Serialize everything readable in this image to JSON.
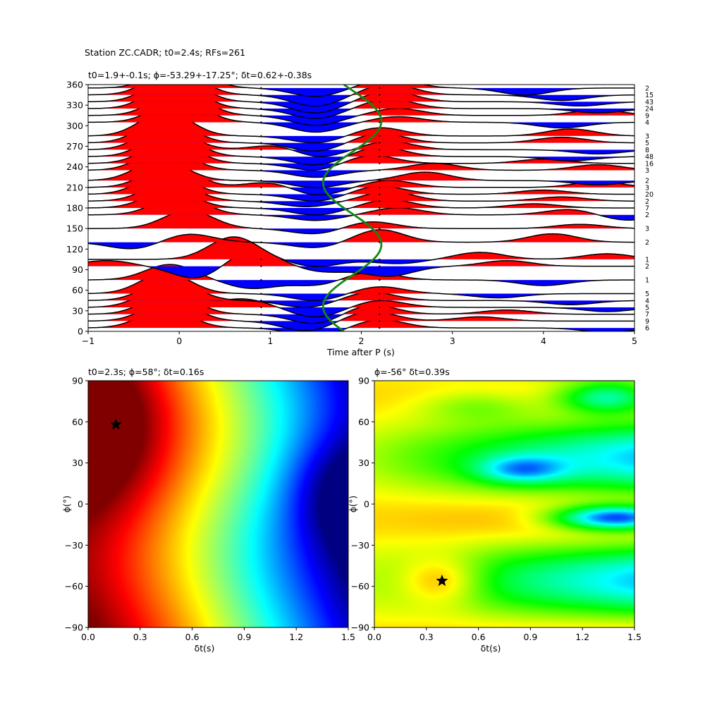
{
  "suptitle": "Station ZC.CADR; t0=2.4s; RFs=261",
  "chart_data": [
    {
      "type": "wiggle",
      "title": "t0=1.9+-0.1s; ϕ=-53.29+-17.25°; δt=0.62+-0.38s",
      "xlabel": "Time after P (s)",
      "ylabel": "",
      "xlim": [
        -1,
        5
      ],
      "ylim": [
        0,
        360
      ],
      "xticks": [
        "−1",
        "0",
        "1",
        "2",
        "3",
        "4",
        "5"
      ],
      "yticks": [
        "0",
        "30",
        "60",
        "90",
        "120",
        "150",
        "180",
        "210",
        "240",
        "270",
        "300",
        "330",
        "360"
      ],
      "colors": {
        "positive": "#ff0000",
        "negative": "#0000ff",
        "trace": "#000000",
        "curve": "#118811"
      },
      "traces": [
        {
          "baz": 5,
          "count": "6",
          "peaks": [
            [
              -0.15,
              28
            ],
            [
              1.5,
              -12
            ],
            [
              2.2,
              12
            ],
            [
              4.7,
              -6
            ]
          ]
        },
        {
          "baz": 15,
          "count": "9",
          "peaks": [
            [
              -0.1,
              30
            ],
            [
              1.4,
              -14
            ],
            [
              2.1,
              14
            ],
            [
              3.3,
              6
            ]
          ]
        },
        {
          "baz": 25,
          "count": "7",
          "peaks": [
            [
              -0.1,
              32
            ],
            [
              1.5,
              -14
            ],
            [
              2.1,
              14
            ],
            [
              3.6,
              6
            ]
          ]
        },
        {
          "baz": 35,
          "count": "5",
          "peaks": [
            [
              -0.15,
              30
            ],
            [
              0.7,
              12
            ],
            [
              1.5,
              -14
            ],
            [
              2.2,
              10
            ],
            [
              4.7,
              -6
            ]
          ]
        },
        {
          "baz": 45,
          "count": "4",
          "peaks": [
            [
              -0.1,
              32
            ],
            [
              1.4,
              -10
            ],
            [
              2.1,
              12
            ],
            [
              4.3,
              -6
            ]
          ]
        },
        {
          "baz": 55,
          "count": "5",
          "peaks": [
            [
              -0.15,
              30
            ],
            [
              1.5,
              -10
            ],
            [
              2.2,
              10
            ],
            [
              3.5,
              -6
            ]
          ]
        },
        {
          "baz": 75,
          "count": "1",
          "peaks": [
            [
              -0.1,
              22
            ],
            [
              0.8,
              -12
            ],
            [
              1.5,
              -8
            ],
            [
              2.1,
              12
            ],
            [
              4.0,
              -8
            ]
          ]
        },
        {
          "baz": 95,
          "count": "2",
          "peaks": [
            [
              -0.8,
              8
            ],
            [
              0.2,
              -18
            ],
            [
              0.8,
              24
            ],
            [
              1.6,
              -8
            ],
            [
              2.3,
              -14
            ],
            [
              3.6,
              8
            ]
          ]
        },
        {
          "baz": 105,
          "count": "1",
          "peaks": [
            [
              0.6,
              32
            ],
            [
              1.5,
              -10
            ],
            [
              2.4,
              -6
            ],
            [
              3.3,
              10
            ],
            [
              4.7,
              8
            ]
          ]
        },
        {
          "baz": 130,
          "count": "2",
          "peaks": [
            [
              -0.5,
              -10
            ],
            [
              0.1,
              12
            ],
            [
              1.5,
              -8
            ],
            [
              2.2,
              18
            ],
            [
              4.1,
              12
            ]
          ]
        },
        {
          "baz": 150,
          "count": "3",
          "peaks": [
            [
              0.1,
              26
            ],
            [
              1.5,
              -8
            ],
            [
              2.1,
              10
            ],
            [
              4.4,
              6
            ]
          ]
        },
        {
          "baz": 170,
          "count": "2",
          "peaks": [
            [
              0.0,
              28
            ],
            [
              1.5,
              -8
            ],
            [
              2.4,
              10
            ],
            [
              4.3,
              8
            ],
            [
              4.9,
              -8
            ]
          ]
        },
        {
          "baz": 180,
          "count": "7",
          "peaks": [
            [
              -0.1,
              26
            ],
            [
              1.5,
              -10
            ],
            [
              2.3,
              12
            ],
            [
              3.9,
              6
            ]
          ]
        },
        {
          "baz": 190,
          "count": "2",
          "peaks": [
            [
              -0.1,
              28
            ],
            [
              1.4,
              -8
            ],
            [
              2.3,
              14
            ],
            [
              4.2,
              6
            ]
          ]
        },
        {
          "baz": 200,
          "count": "20",
          "peaks": [
            [
              -0.15,
              32
            ],
            [
              1.5,
              -10
            ],
            [
              2.2,
              12
            ],
            [
              4.0,
              6
            ]
          ]
        },
        {
          "baz": 210,
          "count": "3",
          "peaks": [
            [
              -0.1,
              34
            ],
            [
              1.0,
              8
            ],
            [
              1.5,
              -12
            ],
            [
              2.3,
              10
            ],
            [
              4.6,
              8
            ]
          ]
        },
        {
          "baz": 220,
          "count": "2",
          "peaks": [
            [
              -0.2,
              30
            ],
            [
              1.5,
              -10
            ],
            [
              2.7,
              12
            ],
            [
              4.6,
              -6
            ]
          ]
        },
        {
          "baz": 235,
          "count": "3",
          "peaks": [
            [
              -0.15,
              32
            ],
            [
              1.5,
              -10
            ],
            [
              2.8,
              10
            ],
            [
              4.6,
              8
            ]
          ]
        },
        {
          "baz": 245,
          "count": "16",
          "peaks": [
            [
              -0.1,
              34
            ],
            [
              1.5,
              -10
            ],
            [
              2.1,
              12
            ],
            [
              4.0,
              6
            ]
          ]
        },
        {
          "baz": 255,
          "count": "48",
          "peaks": [
            [
              -0.1,
              36
            ],
            [
              1.5,
              -12
            ],
            [
              2.2,
              14
            ],
            [
              4.3,
              -6
            ]
          ]
        },
        {
          "baz": 265,
          "count": "8",
          "peaks": [
            [
              -0.15,
              34
            ],
            [
              1.1,
              8
            ],
            [
              1.5,
              -12
            ],
            [
              2.3,
              12
            ],
            [
              4.6,
              -6
            ]
          ]
        },
        {
          "baz": 275,
          "count": "5",
          "peaks": [
            [
              -0.15,
              36
            ],
            [
              1.5,
              -12
            ],
            [
              2.2,
              14
            ],
            [
              4.2,
              8
            ]
          ]
        },
        {
          "baz": 285,
          "count": "3",
          "peaks": [
            [
              -0.15,
              36
            ],
            [
              1.5,
              -10
            ],
            [
              2.2,
              12
            ],
            [
              4.3,
              10
            ]
          ]
        },
        {
          "baz": 305,
          "count": "4",
          "peaks": [
            [
              0.0,
              34
            ],
            [
              1.5,
              -14
            ],
            [
              2.4,
              8
            ],
            [
              4.2,
              -8
            ]
          ]
        },
        {
          "baz": 315,
          "count": "9",
          "peaks": [
            [
              0.0,
              38
            ],
            [
              1.5,
              -14
            ],
            [
              2.4,
              10
            ],
            [
              4.6,
              8
            ]
          ]
        },
        {
          "baz": 325,
          "count": "24",
          "peaks": [
            [
              -0.05,
              40
            ],
            [
              1.5,
              -14
            ],
            [
              2.3,
              14
            ],
            [
              4.6,
              -6
            ]
          ]
        },
        {
          "baz": 335,
          "count": "43",
          "peaks": [
            [
              -0.05,
              40
            ],
            [
              1.5,
              -16
            ],
            [
              2.3,
              16
            ],
            [
              4.4,
              -6
            ]
          ]
        },
        {
          "baz": 345,
          "count": "15",
          "peaks": [
            [
              -0.05,
              40
            ],
            [
              1.5,
              -16
            ],
            [
              2.3,
              16
            ],
            [
              4.2,
              -8
            ]
          ]
        },
        {
          "baz": 355,
          "count": "2",
          "peaks": [
            [
              0.0,
              36
            ],
            [
              1.5,
              -12
            ],
            [
              2.3,
              14
            ],
            [
              3.8,
              -10
            ]
          ]
        }
      ],
      "dots_time": [
        0.9,
        2.2
      ],
      "curve": {
        "t0": 1.9,
        "amplitude": 0.32,
        "phase_deg": -53.29
      }
    },
    {
      "type": "heatmap",
      "title": "t0=2.3s; ϕ=58°; δt=0.16s",
      "xlabel": "δt(s)",
      "ylabel": "ϕ(°)",
      "xlim": [
        0,
        1.5
      ],
      "ylim": [
        -90,
        90
      ],
      "xticks": [
        "0.0",
        "0.3",
        "0.6",
        "0.9",
        "1.2",
        "1.5"
      ],
      "yticks": [
        "−90",
        "−60",
        "−30",
        "0",
        "30",
        "60",
        "90"
      ],
      "colormap": "jet",
      "best": {
        "dt": 0.16,
        "phi": 58
      }
    },
    {
      "type": "heatmap",
      "title": "ϕ=-56° δt=0.39s",
      "xlabel": "δt(s)",
      "ylabel": "ϕ(°)",
      "xlim": [
        0,
        1.5
      ],
      "ylim": [
        -90,
        90
      ],
      "xticks": [
        "0.0",
        "0.3",
        "0.6",
        "0.9",
        "1.2",
        "1.5"
      ],
      "yticks": [
        "−90",
        "−60",
        "−30",
        "0",
        "30",
        "60",
        "90"
      ],
      "colormap": "hsv",
      "best": {
        "dt": 0.39,
        "phi": -56
      }
    }
  ]
}
